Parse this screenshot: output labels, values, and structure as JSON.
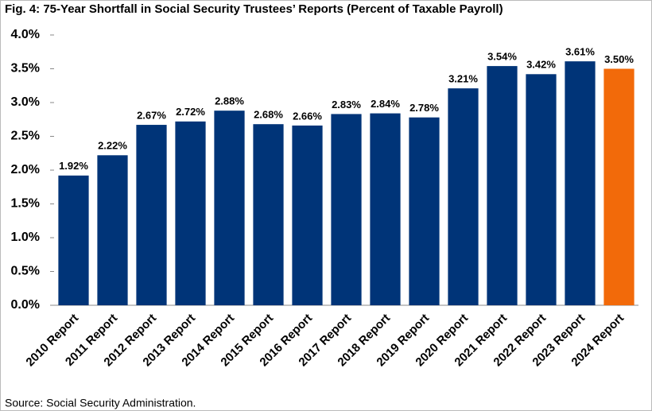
{
  "chart_data": {
    "type": "bar",
    "title": "Fig. 4: 75-Year Shortfall in Social Security Trustees’ Reports (Percent of Taxable Payroll)",
    "categories": [
      "2010 Report",
      "2011 Report",
      "2012 Report",
      "2013 Report",
      "2014 Report",
      "2015 Report",
      "2016 Report",
      "2017 Report",
      "2018 Report",
      "2019 Report",
      "2020 Report",
      "2021 Report",
      "2022 Report",
      "2023 Report",
      "2024 Report"
    ],
    "values": [
      1.92,
      2.22,
      2.67,
      2.72,
      2.88,
      2.68,
      2.66,
      2.83,
      2.84,
      2.78,
      3.21,
      3.54,
      3.42,
      3.61,
      3.5
    ],
    "value_labels": [
      "1.92%",
      "2.22%",
      "2.67%",
      "2.72%",
      "2.88%",
      "2.68%",
      "2.66%",
      "2.83%",
      "2.84%",
      "2.78%",
      "3.21%",
      "3.54%",
      "3.42%",
      "3.61%",
      "3.50%"
    ],
    "colors": [
      "#003478",
      "#003478",
      "#003478",
      "#003478",
      "#003478",
      "#003478",
      "#003478",
      "#003478",
      "#003478",
      "#003478",
      "#003478",
      "#003478",
      "#003478",
      "#003478",
      "#f26a0a"
    ],
    "ylim": [
      0,
      4
    ],
    "yticks": [
      {
        "value": 0,
        "label": "0.0%"
      },
      {
        "value": 0.5,
        "label": "0.5%"
      },
      {
        "value": 1,
        "label": "1.0%"
      },
      {
        "value": 1.5,
        "label": "1.5%"
      },
      {
        "value": 2,
        "label": "2.0%"
      },
      {
        "value": 2.5,
        "label": "2.5%"
      },
      {
        "value": 3,
        "label": "3.0%"
      },
      {
        "value": 3.5,
        "label": "3.5%"
      },
      {
        "value": 4,
        "label": "4.0%"
      }
    ],
    "grid": false,
    "source": "Source: Social Security Administration."
  }
}
